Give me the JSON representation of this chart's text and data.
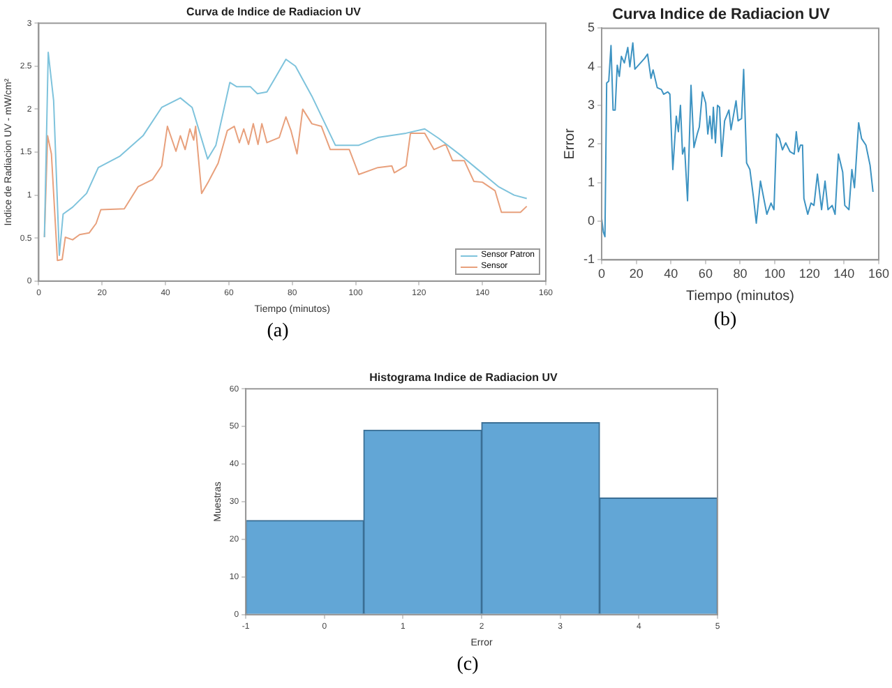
{
  "chart_data": [
    {
      "type": "line",
      "title": "Curva de Indice de Radiacion UV",
      "xlabel": "Tiempo (minutos)",
      "ylabel": "Indice de Radiacion UV - mW/cm²",
      "xlim": [
        0,
        160
      ],
      "xticks": [
        0,
        20,
        40,
        60,
        80,
        100,
        120,
        140,
        160
      ],
      "ylim": [
        0,
        3
      ],
      "yticks": [
        0,
        0.5,
        1,
        1.5,
        2,
        2.5,
        3
      ],
      "legend": "bottom right",
      "marker": "none",
      "annotations": [
        "(a)"
      ],
      "series": [
        {
          "name": "Sensor Patron",
          "color": "#7ec3dc",
          "x": [
            1.8,
            3,
            4.7,
            6.5,
            7.7,
            10.7,
            15.1,
            18.8,
            25.5,
            32.9,
            38.8,
            44.7,
            48.4,
            53.3,
            55.9,
            60.3,
            62.5,
            66.8,
            69,
            72,
            74.4,
            78,
            81,
            86.2,
            93.6,
            101,
            107,
            115.9,
            121.8,
            126.2,
            133.6,
            138.8,
            145,
            150,
            154
          ],
          "values": [
            0.51,
            2.66,
            2.1,
            0.3,
            0.78,
            0.86,
            1.02,
            1.32,
            1.45,
            1.69,
            2.02,
            2.13,
            2.02,
            1.42,
            1.58,
            2.31,
            2.26,
            2.26,
            2.18,
            2.2,
            2.35,
            2.58,
            2.5,
            2.15,
            1.58,
            1.58,
            1.67,
            1.72,
            1.77,
            1.66,
            1.45,
            1.29,
            1.1,
            1.0,
            0.96
          ]
        },
        {
          "name": "Sensor",
          "color": "#e8a07c",
          "x": [
            1.8,
            2.8,
            4,
            5.9,
            7.4,
            8.4,
            10.7,
            12.9,
            15.9,
            18.1,
            19.6,
            27,
            31.4,
            35.9,
            38.8,
            40.6,
            43.3,
            44.7,
            46.2,
            47.7,
            48.9,
            49.5,
            51.4,
            53.6,
            56.6,
            59.5,
            61.7,
            63.3,
            64.7,
            66.2,
            67.7,
            69.2,
            70.4,
            72,
            75.9,
            78,
            79.6,
            81.5,
            83.3,
            86.2,
            89.2,
            92,
            98,
            101,
            107,
            111.4,
            112.2,
            115.9,
            117.3,
            121.8,
            124.7,
            128.4,
            130.6,
            134.3,
            137.3,
            140,
            144,
            146,
            152,
            154
          ],
          "values": [
            0.51,
            1.69,
            1.48,
            0.24,
            0.25,
            0.51,
            0.48,
            0.54,
            0.56,
            0.67,
            0.83,
            0.84,
            1.1,
            1.18,
            1.34,
            1.8,
            1.51,
            1.69,
            1.53,
            1.77,
            1.64,
            1.8,
            1.02,
            1.16,
            1.37,
            1.75,
            1.8,
            1.61,
            1.77,
            1.59,
            1.83,
            1.59,
            1.83,
            1.61,
            1.67,
            1.91,
            1.75,
            1.48,
            2.0,
            1.83,
            1.8,
            1.53,
            1.53,
            1.24,
            1.32,
            1.34,
            1.26,
            1.34,
            1.72,
            1.72,
            1.53,
            1.59,
            1.4,
            1.4,
            1.16,
            1.15,
            1.05,
            0.8,
            0.8,
            0.87
          ]
        }
      ]
    },
    {
      "type": "line",
      "title": "Curva Indice de Radiacion UV",
      "xlabel": "Tiempo (minutos)",
      "ylabel": "Error",
      "xlim": [
        0,
        160
      ],
      "xticks": [
        0,
        20,
        40,
        60,
        80,
        100,
        120,
        140,
        160
      ],
      "ylim": [
        -1,
        5
      ],
      "yticks": [
        -1,
        0,
        1,
        2,
        3,
        4,
        5
      ],
      "marker": "none",
      "annotations": [
        "(b)"
      ],
      "series": [
        {
          "color": "#3d93c2",
          "x": [
            0,
            1,
            1.9,
            2.9,
            4.1,
            5.4,
            6.6,
            7.8,
            9,
            10.2,
            11.4,
            13.1,
            15.1,
            16.3,
            18,
            19.2,
            24.8,
            26.5,
            28.5,
            29.7,
            32.1,
            34.5,
            35.8,
            38.2,
            39.4,
            41.1,
            43.1,
            44.3,
            45.5,
            46.7,
            47.9,
            49.6,
            51.6,
            53.3,
            55.2,
            56.4,
            58.2,
            60.1,
            61.3,
            62.5,
            63.7,
            64.5,
            65.7,
            66.9,
            68.1,
            69.3,
            71,
            73.5,
            74.7,
            77.6,
            78.8,
            80.8,
            82,
            83.7,
            85.6,
            87.6,
            89.3,
            91.7,
            95.4,
            97.8,
            99.5,
            101,
            102.7,
            104.4,
            106.3,
            108.8,
            111.2,
            112.4,
            113.6,
            114.8,
            116,
            116.8,
            119,
            120.9,
            122.6,
            124.6,
            127,
            129,
            130.7,
            133.1,
            134.8,
            136.7,
            139.2,
            140.4,
            142.8,
            144.5,
            146,
            148.4,
            150.1,
            152.6,
            155,
            156.7
          ],
          "values": [
            0.07,
            -0.28,
            -0.4,
            3.58,
            3.63,
            4.55,
            2.88,
            2.88,
            4.04,
            3.75,
            4.27,
            4.1,
            4.5,
            4.0,
            4.62,
            3.94,
            4.22,
            4.33,
            3.7,
            3.92,
            3.46,
            3.41,
            3.29,
            3.35,
            3.29,
            1.34,
            2.72,
            2.32,
            3.0,
            1.74,
            1.91,
            0.53,
            3.52,
            1.91,
            2.26,
            2.44,
            3.35,
            3.06,
            2.26,
            2.72,
            2.14,
            2.95,
            2.03,
            3.0,
            2.95,
            1.68,
            2.6,
            2.88,
            2.37,
            3.12,
            2.6,
            2.66,
            3.93,
            1.51,
            1.34,
            0.64,
            -0.05,
            1.04,
            0.18,
            0.47,
            0.3,
            2.26,
            2.14,
            1.85,
            2.03,
            1.8,
            1.74,
            2.32,
            1.8,
            1.97,
            1.97,
            0.59,
            0.18,
            0.47,
            0.41,
            1.22,
            0.3,
            1.04,
            0.3,
            0.41,
            0.18,
            1.74,
            1.27,
            0.41,
            0.3,
            1.34,
            0.87,
            2.55,
            2.14,
            1.97,
            1.45,
            0.76
          ]
        }
      ]
    },
    {
      "type": "histogram",
      "title": "Histograma Indice de Radiacion UV",
      "xlabel": "Error",
      "ylabel": "Muestras",
      "bins": [
        -1,
        0.5,
        2,
        3.5,
        5
      ],
      "values": [
        25,
        49,
        51,
        31
      ],
      "color": "#62a6d6",
      "xlim": [
        -1,
        5
      ],
      "xticks": [
        -1,
        0,
        1,
        2,
        3,
        4,
        5
      ],
      "ylim": [
        0,
        60
      ],
      "yticks": [
        0,
        10,
        20,
        30,
        40,
        50,
        60
      ],
      "annotations": [
        "(c)"
      ]
    }
  ]
}
